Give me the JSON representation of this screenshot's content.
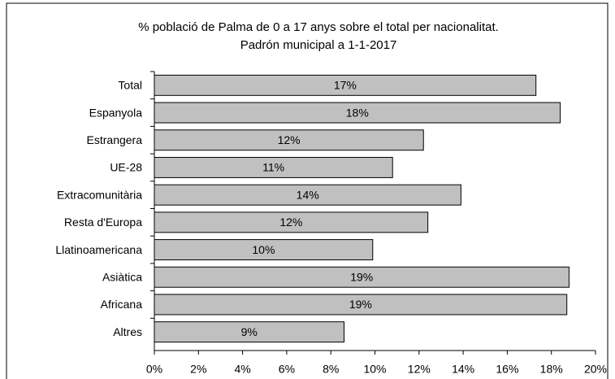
{
  "chart_data": {
    "type": "bar",
    "orientation": "horizontal",
    "title": "% població de Palma de 0 a 17 anys sobre el total per nacionalitat.",
    "subtitle": "Padrón municipal a 1-1-2017",
    "categories": [
      "Total",
      "Espanyola",
      "Estrangera",
      "UE-28",
      "Extracomunitària",
      "Resta d'Europa",
      "Llatinoamericana",
      "Asiàtica",
      "Africana",
      "Altres"
    ],
    "values": [
      17.3,
      18.4,
      12.2,
      10.8,
      13.9,
      12.4,
      9.9,
      18.8,
      18.7,
      8.6
    ],
    "value_labels": [
      "17%",
      "18%",
      "12%",
      "11%",
      "14%",
      "12%",
      "10%",
      "19%",
      "19%",
      "9%"
    ],
    "color": "#c0c0c0",
    "xlim": [
      0,
      20
    ],
    "xticks": [
      {
        "value": 0,
        "label": "0%"
      },
      {
        "value": 2,
        "label": "2%"
      },
      {
        "value": 4,
        "label": "4%"
      },
      {
        "value": 6,
        "label": "6%"
      },
      {
        "value": 8,
        "label": "8%"
      },
      {
        "value": 10,
        "label": "10%"
      },
      {
        "value": 12,
        "label": "12%"
      },
      {
        "value": 14,
        "label": "14%"
      },
      {
        "value": 16,
        "label": "16%"
      },
      {
        "value": 18,
        "label": "18%"
      },
      {
        "value": 20,
        "label": "20%"
      }
    ],
    "grid": false
  }
}
